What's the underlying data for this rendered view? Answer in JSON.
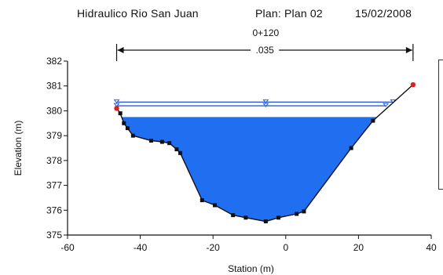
{
  "header": {
    "project": "Hidraulico Rio San Juan",
    "plan": "Plan: Plan 02",
    "date": "15/02/2008"
  },
  "chart_data": {
    "type": "area",
    "title": "0+120",
    "xlabel": "Station (m)",
    "ylabel": "Elevation (m)",
    "xlim": [
      -60,
      40
    ],
    "ylim": [
      375,
      382
    ],
    "xticks": [
      -60,
      -40,
      -20,
      0,
      20,
      40
    ],
    "yticks": [
      375,
      376,
      377,
      378,
      379,
      380,
      381,
      382
    ],
    "manning_label": ".035",
    "manning_extent": [
      -46.5,
      35
    ],
    "ground": [
      {
        "x": -46.5,
        "y": 380.1
      },
      {
        "x": -45.5,
        "y": 379.9
      },
      {
        "x": -44.5,
        "y": 379.5
      },
      {
        "x": -43.5,
        "y": 379.3
      },
      {
        "x": -42,
        "y": 379.0
      },
      {
        "x": -37,
        "y": 378.8
      },
      {
        "x": -34,
        "y": 378.75
      },
      {
        "x": -32,
        "y": 378.7
      },
      {
        "x": -30,
        "y": 378.45
      },
      {
        "x": -29,
        "y": 378.3
      },
      {
        "x": -23,
        "y": 376.4
      },
      {
        "x": -19.5,
        "y": 376.2
      },
      {
        "x": -14.5,
        "y": 375.8
      },
      {
        "x": -11,
        "y": 375.7
      },
      {
        "x": -5.5,
        "y": 375.55
      },
      {
        "x": -2,
        "y": 375.7
      },
      {
        "x": 3,
        "y": 375.85
      },
      {
        "x": 5,
        "y": 375.95
      },
      {
        "x": 18,
        "y": 378.5
      },
      {
        "x": 24,
        "y": 379.6
      },
      {
        "x": 35,
        "y": 381.05
      }
    ],
    "bank_points": [
      {
        "x": -46.5,
        "y": 380.1
      },
      {
        "x": 35,
        "y": 381.05
      }
    ],
    "water_surface": 379.75,
    "upper_lines": [
      {
        "name": "",
        "y": 380.35,
        "x_start": -46.5,
        "x_end": 29.5,
        "mid_x": -5.5
      },
      {
        "name": "",
        "y": 380.2,
        "x_start": -46.5,
        "x_end": 27.5,
        "mid_x": -5.5
      }
    ],
    "colors": {
      "water": "#1f6ff0",
      "ground": "#111111",
      "upper_line": "#2b5fd9",
      "bank": "#e02020"
    }
  }
}
